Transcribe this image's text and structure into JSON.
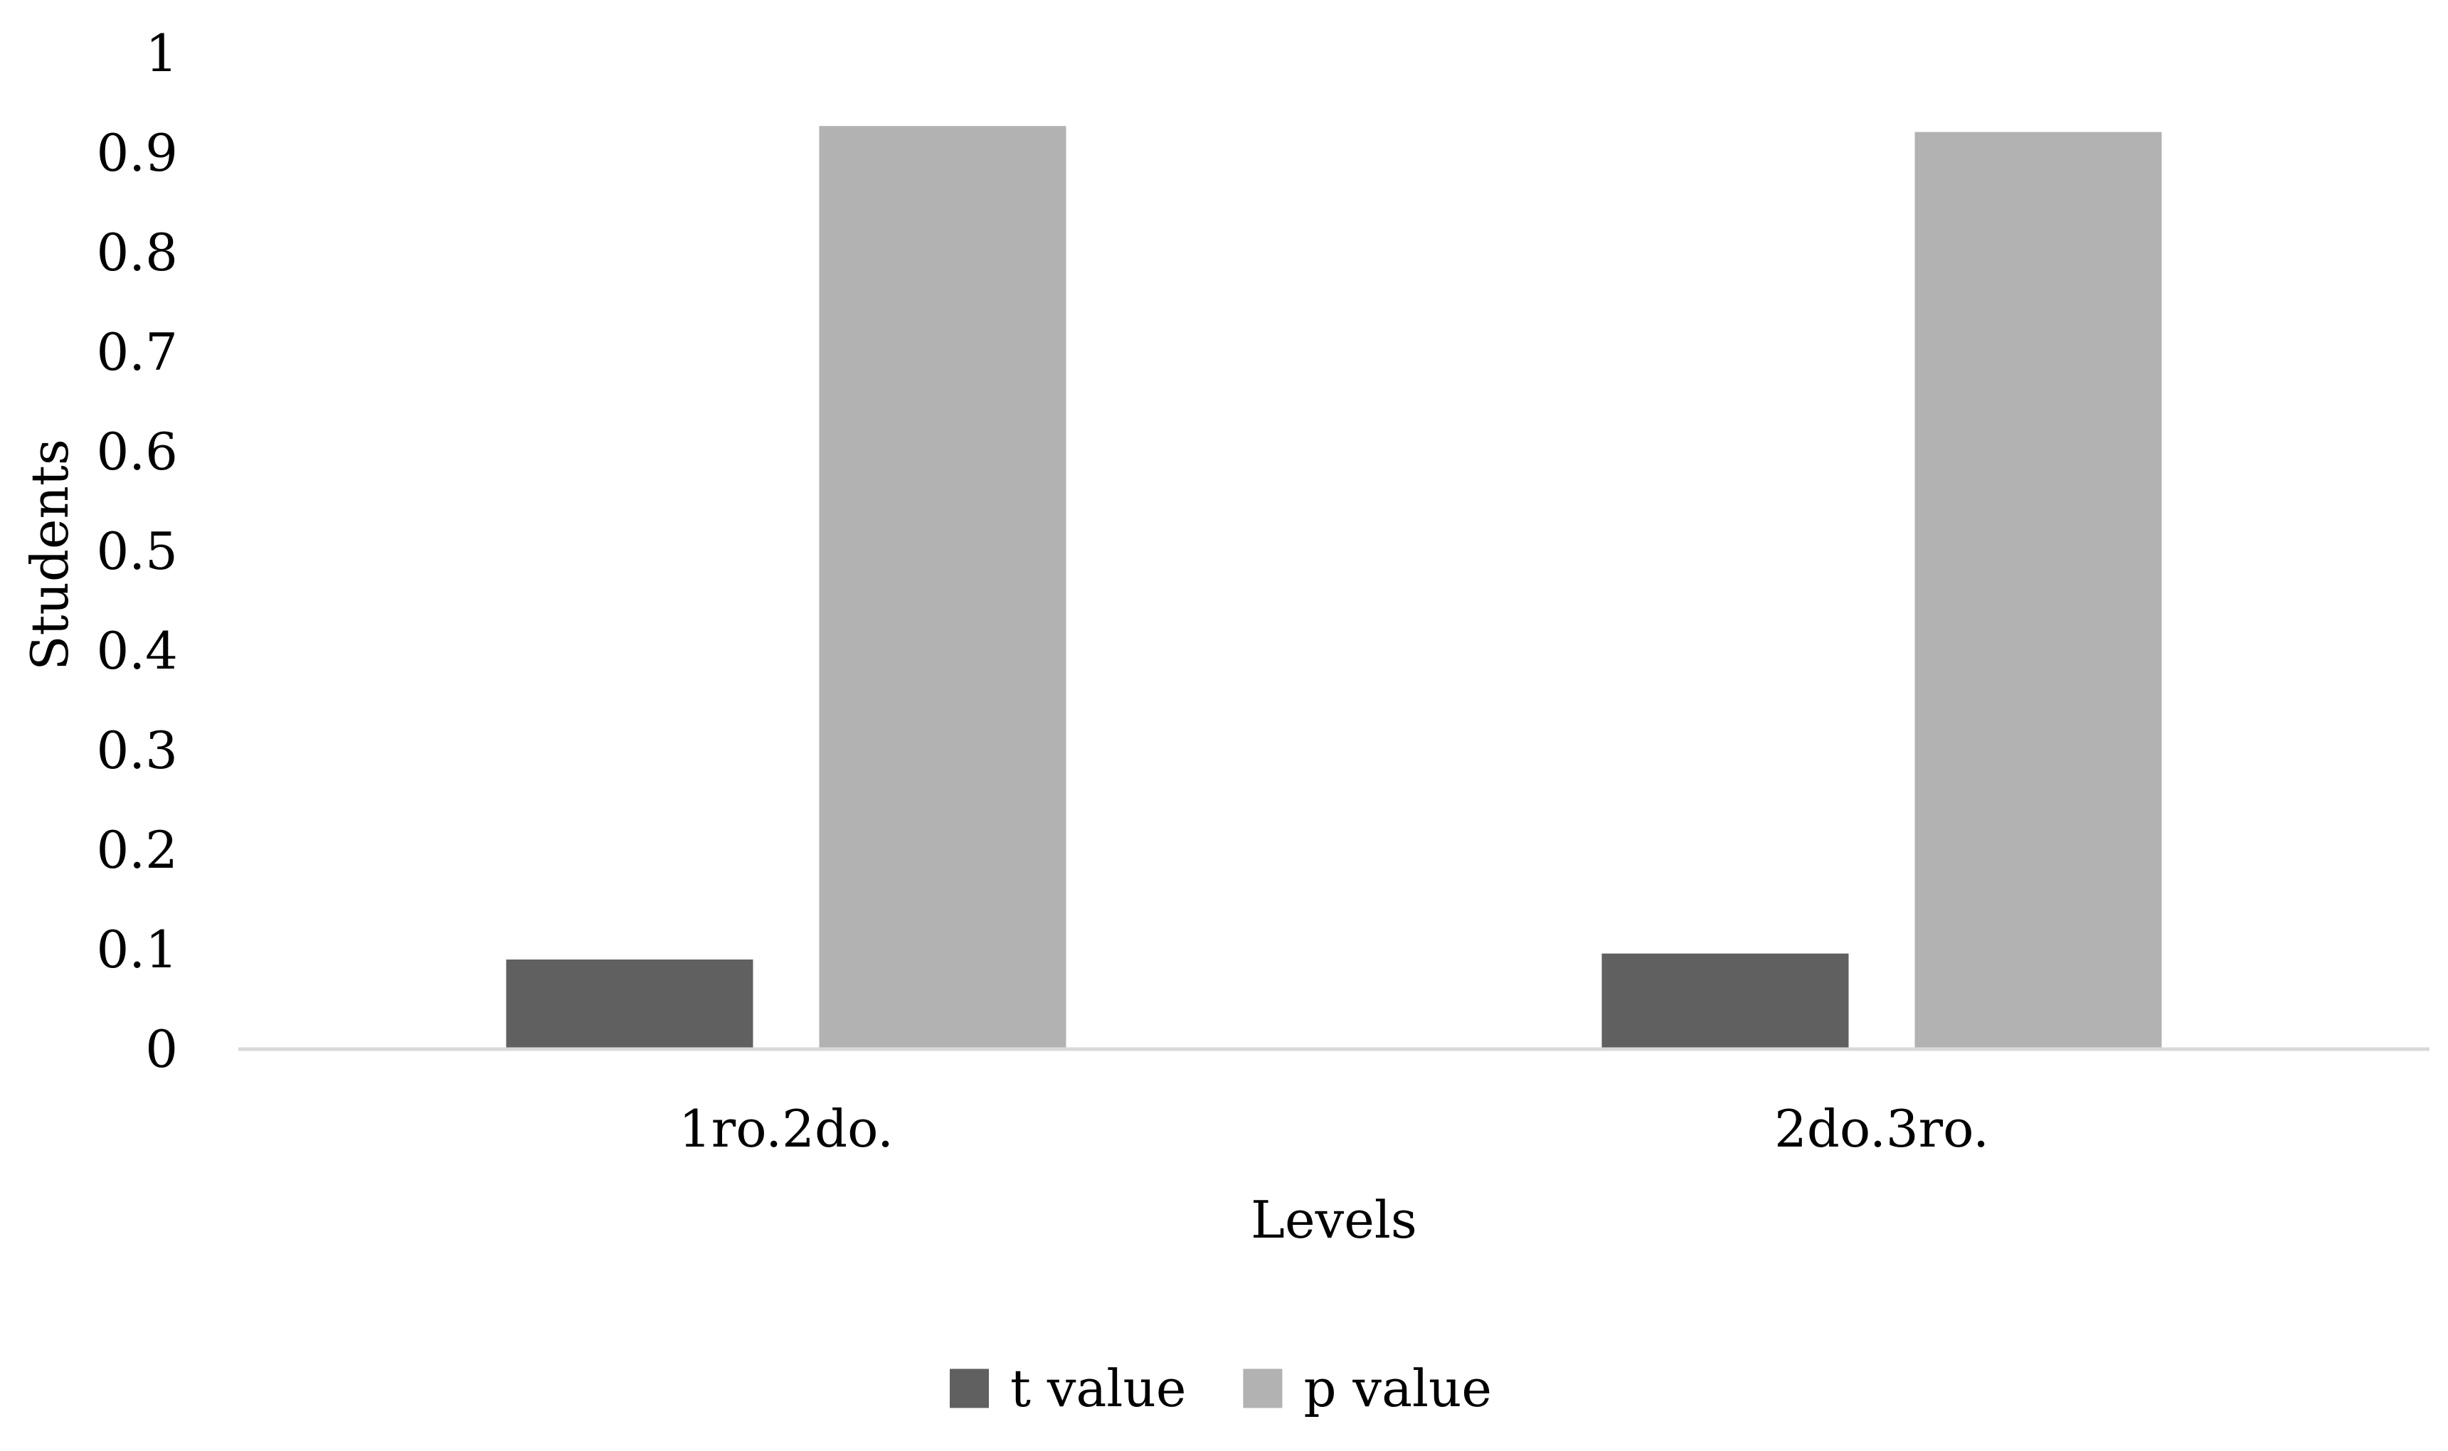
{
  "chart_data": {
    "type": "bar",
    "title": "",
    "xlabel": "Levels",
    "ylabel": "Students",
    "categories": [
      "1ro.2do.",
      "2do.3ro."
    ],
    "series": [
      {
        "name": "t value",
        "color": "#606060",
        "values": [
          0.09,
          0.096
        ]
      },
      {
        "name": "p value",
        "color": "#b2b2b2",
        "values": [
          0.927,
          0.921
        ]
      }
    ],
    "ylim": [
      0,
      1
    ],
    "yticks": [
      "0",
      "0.1",
      "0.2",
      "0.3",
      "0.4",
      "0.5",
      "0.6",
      "0.7",
      "0.8",
      "0.9",
      "1"
    ],
    "grid": false,
    "legend_position": "bottom-center",
    "axis_color": "#d9d9d9"
  }
}
